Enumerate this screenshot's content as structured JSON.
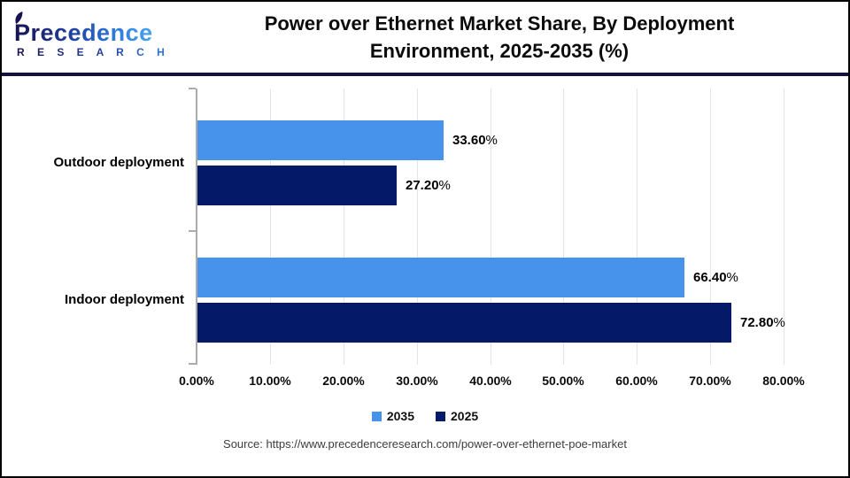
{
  "header": {
    "logo": {
      "name": "Precedence",
      "subtitle": "R E S E A R C H"
    },
    "title_line1": "Power over Ethernet Market Share, By Deployment",
    "title_line2": "Environment, 2025-2035 (%)"
  },
  "chart_data": {
    "type": "bar",
    "orientation": "horizontal",
    "title": "Power over Ethernet Market Share, By Deployment Environment, 2025-2035 (%)",
    "categories": [
      "Outdoor deployment",
      "Indoor deployment"
    ],
    "series": [
      {
        "name": "2035",
        "color": "#4793EB",
        "values": [
          33.6,
          66.4
        ],
        "labels": [
          "33.60%",
          "66.40%"
        ]
      },
      {
        "name": "2025",
        "color": "#041968",
        "values": [
          27.2,
          72.8
        ],
        "labels": [
          "27.20%",
          "72.80%"
        ]
      }
    ],
    "xlim": [
      0,
      80
    ],
    "x_tick_labels": [
      "0.00%",
      "10.00%",
      "20.00%",
      "30.00%",
      "40.00%",
      "50.00%",
      "60.00%",
      "70.00%",
      "80.00%"
    ],
    "grid": true,
    "legend_position": "bottom",
    "axis_color": "#ababab",
    "gridline_color": "#e4e4e4"
  },
  "footer": {
    "source": "Source: https://www.precedenceresearch.com/power-over-ethernet-poe-market"
  }
}
